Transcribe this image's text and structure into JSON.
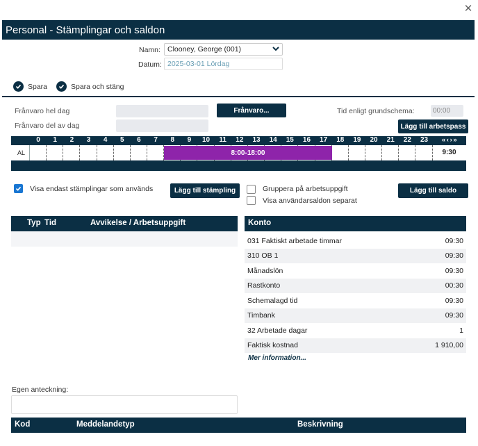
{
  "dialog": {
    "title": "Personal - Stämplingar och saldon",
    "close_symbol": "✕"
  },
  "form": {
    "name_label": "Namn:",
    "name_value": "Clooney, George (001)",
    "date_label": "Datum:",
    "date_value": "2025-03-01 Lördag"
  },
  "toolbar": {
    "save_label": "Spara",
    "save_close_label": "Spara och stäng"
  },
  "absence": {
    "full_day_label": "Frånvaro hel dag",
    "part_day_label": "Frånvaro del av dag",
    "absence_button": "Frånvaro...",
    "schedule_label": "Tid enligt grundschema:",
    "schedule_value": "00:00",
    "add_shift_button": "Lägg till arbetspass"
  },
  "timeline": {
    "hours": [
      "0",
      "1",
      "2",
      "3",
      "4",
      "5",
      "6",
      "7",
      "8",
      "9",
      "10",
      "11",
      "12",
      "13",
      "14",
      "15",
      "16",
      "17",
      "18",
      "19",
      "20",
      "21",
      "22",
      "23"
    ],
    "row_label": "AL",
    "shift_label": "8:00-18:00",
    "shift_start_hour": 8,
    "shift_end_hour": 18,
    "shift_color": "#8e24aa",
    "nav_arrows": "« ‹ › »",
    "total": "9:30"
  },
  "options": {
    "show_used_label": "Visa endast stämplingar som används",
    "show_used_checked": true,
    "add_stamp_button": "Lägg till stämpling",
    "group_label": "Gruppera på arbetsuppgift",
    "separate_label": "Visa användarsaldon separat",
    "add_balance_button": "Lägg till saldo"
  },
  "stamps_table": {
    "col_type": "Typ",
    "col_time": "Tid",
    "col_dev": "Avvikelse / Arbetsuppgift"
  },
  "accounts": {
    "header": "Konto",
    "rows": [
      {
        "name": "031 Faktiskt arbetade timmar",
        "value": "09:30"
      },
      {
        "name": "310 OB 1",
        "value": "09:30"
      },
      {
        "name": "Månadslön",
        "value": "09:30"
      },
      {
        "name": "Rastkonto",
        "value": "00:30"
      },
      {
        "name": "Schemalagd tid",
        "value": "09:30"
      },
      {
        "name": "Timbank",
        "value": "09:30"
      },
      {
        "name": "32 Arbetade dagar",
        "value": "1"
      },
      {
        "name": "Faktisk kostnad",
        "value": "1 910,00"
      }
    ],
    "more_link": "Mer information..."
  },
  "note": {
    "label": "Egen anteckning:"
  },
  "messages_table": {
    "col_code": "Kod",
    "col_type": "Meddelandetyp",
    "col_desc": "Beskrivning"
  },
  "colors": {
    "navy": "#0b2f44",
    "accent_checkbox": "#1976d2",
    "date_text": "#6a9fb5"
  }
}
